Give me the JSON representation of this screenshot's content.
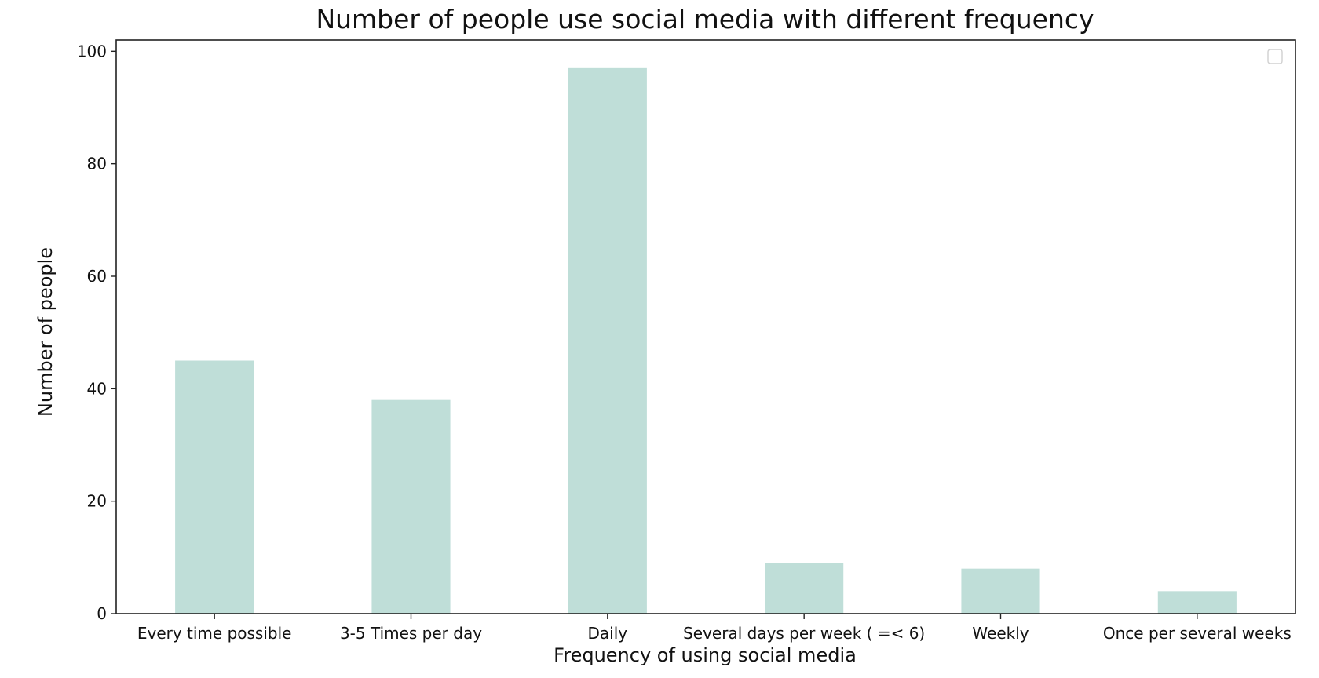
{
  "chart_data": {
    "type": "bar",
    "title": "Number of people use social media with different frequency",
    "xlabel": "Frequency of using social media",
    "ylabel": "Number of people",
    "categories": [
      "Every time possible",
      "3-5 Times per day",
      "Daily",
      "Several days per week ( =< 6)",
      "Weekly",
      "Once per several weeks"
    ],
    "values": [
      45,
      38,
      97,
      9,
      8,
      4
    ],
    "ylim": [
      0,
      102
    ],
    "yticks": [
      0,
      20,
      40,
      60,
      80,
      100
    ],
    "grid": false,
    "legend": "top-right, empty",
    "colors": {
      "bar": "#bfded8",
      "axis": "#222222",
      "text": "#111111"
    }
  }
}
